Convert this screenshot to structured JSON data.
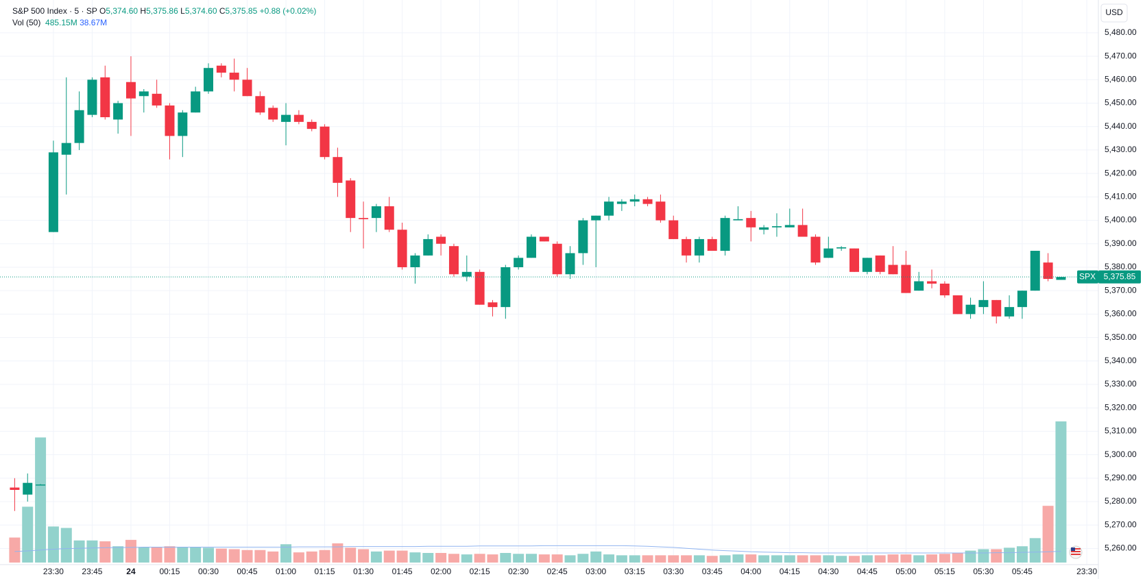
{
  "legend": {
    "symbol": "S&P 500 Index · 5 · SP",
    "ohlc": [
      {
        "key": "O",
        "value": "5,374.60"
      },
      {
        "key": "H",
        "value": "5,375.86"
      },
      {
        "key": "L",
        "value": "5,374.60"
      },
      {
        "key": "C",
        "value": "5,375.85"
      }
    ],
    "change": "+0.88 (+0.02%)",
    "volume_title": "Vol (50)",
    "volume_values": [
      "485.15M",
      "38.67M"
    ]
  },
  "currency": "USD",
  "chart_data": {
    "type": "candlestick",
    "up_color": "#089981",
    "down_color": "#f23645",
    "up_volume_color": "#92d2cc",
    "down_volume_color": "#f7a9a7",
    "ma_color": "#90b4f0",
    "open": [
      5286,
      5283,
      5287,
      5395,
      5428,
      5433,
      5445,
      5461,
      5443,
      5459,
      5453,
      5454,
      5449,
      5436,
      5446,
      5455,
      5466,
      5463,
      5460,
      5453,
      5448,
      5442,
      5445,
      5442,
      5440,
      5427,
      5417,
      5401,
      5401,
      5406,
      5396,
      5380,
      5385,
      5393,
      5389,
      5376,
      5378,
      5365,
      5363,
      5380,
      5384,
      5393,
      5390,
      5377,
      5386,
      5400,
      5402,
      5407,
      5408,
      5409,
      5408,
      5400,
      5392,
      5385,
      5392,
      5387,
      5400,
      5401,
      5396,
      5397,
      5397,
      5398,
      5393,
      5384,
      5388,
      5388,
      5378,
      5385,
      5381,
      5381,
      5370,
      5374,
      5373,
      5368,
      5360,
      5363,
      5366,
      5359,
      5363,
      5370,
      5382,
      5374.6
    ],
    "high": [
      5290,
      5292,
      5287.5,
      5434,
      5461,
      5455,
      5461,
      5466,
      5451,
      5470,
      5456,
      5460,
      5450,
      5447,
      5457,
      5467,
      5467,
      5469,
      5465,
      5455,
      5449,
      5450,
      5447,
      5443,
      5441,
      5431,
      5418,
      5408,
      5407,
      5410,
      5399,
      5386,
      5394,
      5394,
      5390,
      5385,
      5379,
      5366,
      5381,
      5385,
      5394,
      5393,
      5391,
      5389,
      5401,
      5402,
      5410,
      5409,
      5411,
      5410,
      5411,
      5402,
      5393,
      5393,
      5393,
      5402,
      5406,
      5404,
      5398,
      5403,
      5405,
      5405,
      5394,
      5393,
      5389,
      5388,
      5384,
      5385,
      5389,
      5387,
      5378,
      5379,
      5374,
      5368,
      5367,
      5374,
      5366,
      5368,
      5370,
      5387,
      5386,
      5375.86
    ],
    "low": [
      5276,
      5280,
      5287,
      5395,
      5411,
      5430,
      5444,
      5443,
      5437,
      5436,
      5446,
      5448,
      5426,
      5427,
      5446,
      5454,
      5461,
      5455,
      5453,
      5445,
      5442,
      5432,
      5441,
      5438,
      5426,
      5410,
      5395,
      5388,
      5395,
      5395,
      5379,
      5373,
      5385,
      5385,
      5376,
      5374,
      5364,
      5359,
      5358,
      5379,
      5384,
      5391,
      5376,
      5375,
      5381,
      5380,
      5400,
      5404,
      5406,
      5406,
      5399,
      5392,
      5382,
      5382,
      5387,
      5385,
      5400,
      5391,
      5394,
      5393,
      5397,
      5393,
      5381,
      5384,
      5387,
      5378,
      5377,
      5377,
      5377,
      5369,
      5370,
      5371,
      5367,
      5360,
      5358,
      5360,
      5356,
      5358,
      5358,
      5370,
      5374,
      5374.6
    ],
    "close": [
      5285,
      5288,
      5287.3,
      5429,
      5433,
      5447,
      5460,
      5444,
      5450,
      5452,
      5455,
      5449,
      5436,
      5446,
      5455,
      5465,
      5463,
      5460,
      5453,
      5446,
      5443,
      5445,
      5442,
      5439,
      5427,
      5416,
      5401,
      5400.5,
      5406,
      5396,
      5380,
      5385,
      5392,
      5390,
      5377,
      5378,
      5364,
      5363,
      5380,
      5384,
      5393,
      5391,
      5377,
      5386,
      5400,
      5402,
      5408,
      5408,
      5409,
      5407,
      5400,
      5392,
      5385,
      5392,
      5387,
      5401,
      5400.5,
      5397,
      5397,
      5397.5,
      5398,
      5393,
      5382,
      5388,
      5388.5,
      5378,
      5384,
      5378,
      5377,
      5369,
      5374,
      5373,
      5368,
      5360,
      5364,
      5366,
      5359,
      5363,
      5370,
      5387,
      5375,
      5375.85
    ],
    "volume": [
      86,
      192,
      430,
      124,
      119,
      76,
      76,
      73,
      56,
      78,
      53,
      53,
      56,
      53,
      53,
      51,
      48,
      46,
      43,
      43,
      38,
      63,
      35,
      38,
      43,
      66,
      51,
      46,
      38,
      41,
      41,
      35,
      33,
      33,
      30,
      28,
      30,
      28,
      33,
      30,
      30,
      28,
      28,
      25,
      30,
      38,
      28,
      25,
      25,
      25,
      25,
      25,
      25,
      25,
      23,
      25,
      28,
      28,
      25,
      25,
      25,
      25,
      25,
      25,
      23,
      23,
      25,
      25,
      28,
      28,
      25,
      28,
      30,
      33,
      41,
      46,
      46,
      51,
      56,
      84,
      195,
      485.15
    ],
    "volume_ma": [
      38,
      40,
      43,
      46,
      48,
      49,
      50,
      51,
      52,
      52,
      53,
      53,
      53,
      53,
      53,
      53,
      53,
      53,
      53,
      53,
      53,
      53,
      54,
      54,
      54,
      54,
      55,
      55,
      55,
      55,
      55,
      55,
      56,
      56,
      56,
      56,
      57,
      57,
      57,
      57,
      57,
      58,
      58,
      58,
      58,
      58,
      58,
      58,
      57,
      56,
      54,
      52,
      49,
      46,
      43,
      41,
      39,
      37,
      36,
      35,
      34,
      34,
      33,
      33,
      33,
      33,
      33,
      33,
      33,
      33,
      33,
      33,
      33,
      33,
      33,
      33,
      34,
      34,
      35,
      36,
      37,
      38.67
    ],
    "ylim": [
      5254,
      5494
    ],
    "yticks": [
      {
        "value": 5260,
        "label": "5,260.00"
      },
      {
        "value": 5270,
        "label": "5,270.00"
      },
      {
        "value": 5280,
        "label": "5,280.00"
      },
      {
        "value": 5290,
        "label": "5,290.00"
      },
      {
        "value": 5300,
        "label": "5,300.00"
      },
      {
        "value": 5310,
        "label": "5,310.00"
      },
      {
        "value": 5320,
        "label": "5,320.00"
      },
      {
        "value": 5330,
        "label": "5,330.00"
      },
      {
        "value": 5340,
        "label": "5,340.00"
      },
      {
        "value": 5350,
        "label": "5,350.00"
      },
      {
        "value": 5360,
        "label": "5,360.00"
      },
      {
        "value": 5370,
        "label": "5,370.00"
      },
      {
        "value": 5380,
        "label": "5,380.00"
      },
      {
        "value": 5390,
        "label": "5,390.00"
      },
      {
        "value": 5400,
        "label": "5,400.00"
      },
      {
        "value": 5410,
        "label": "5,410.00"
      },
      {
        "value": 5420,
        "label": "5,420.00"
      },
      {
        "value": 5430,
        "label": "5,430.00"
      },
      {
        "value": 5440,
        "label": "5,440.00"
      },
      {
        "value": 5450,
        "label": "5,450.00"
      },
      {
        "value": 5460,
        "label": "5,460.00"
      },
      {
        "value": 5470,
        "label": "5,470.00"
      },
      {
        "value": 5480,
        "label": "5,480.00"
      }
    ],
    "xticks": [
      {
        "value": 3,
        "label": "23:30"
      },
      {
        "value": 6,
        "label": "23:45"
      },
      {
        "value": 9,
        "label": "24"
      },
      {
        "value": 12,
        "label": "00:15"
      },
      {
        "value": 15,
        "label": "00:30"
      },
      {
        "value": 18,
        "label": "00:45"
      },
      {
        "value": 21,
        "label": "01:00"
      },
      {
        "value": 24,
        "label": "01:15"
      },
      {
        "value": 27,
        "label": "01:30"
      },
      {
        "value": 30,
        "label": "01:45"
      },
      {
        "value": 33,
        "label": "02:00"
      },
      {
        "value": 36,
        "label": "02:15"
      },
      {
        "value": 39,
        "label": "02:30"
      },
      {
        "value": 42,
        "label": "02:45"
      },
      {
        "value": 45,
        "label": "03:00"
      },
      {
        "value": 48,
        "label": "03:15"
      },
      {
        "value": 51,
        "label": "03:30"
      },
      {
        "value": 54,
        "label": "03:45"
      },
      {
        "value": 57,
        "label": "04:00"
      },
      {
        "value": 60,
        "label": "04:15"
      },
      {
        "value": 63,
        "label": "04:30"
      },
      {
        "value": 66,
        "label": "04:45"
      },
      {
        "value": 69,
        "label": "05:00"
      },
      {
        "value": 72,
        "label": "05:15"
      },
      {
        "value": 75,
        "label": "05:30"
      },
      {
        "value": 78,
        "label": "05:45"
      },
      {
        "value": 83,
        "label": "23:30"
      }
    ],
    "grid": true,
    "last_price": {
      "symbol": "SPX",
      "value": 5375.85,
      "label": "5,375.85"
    }
  }
}
